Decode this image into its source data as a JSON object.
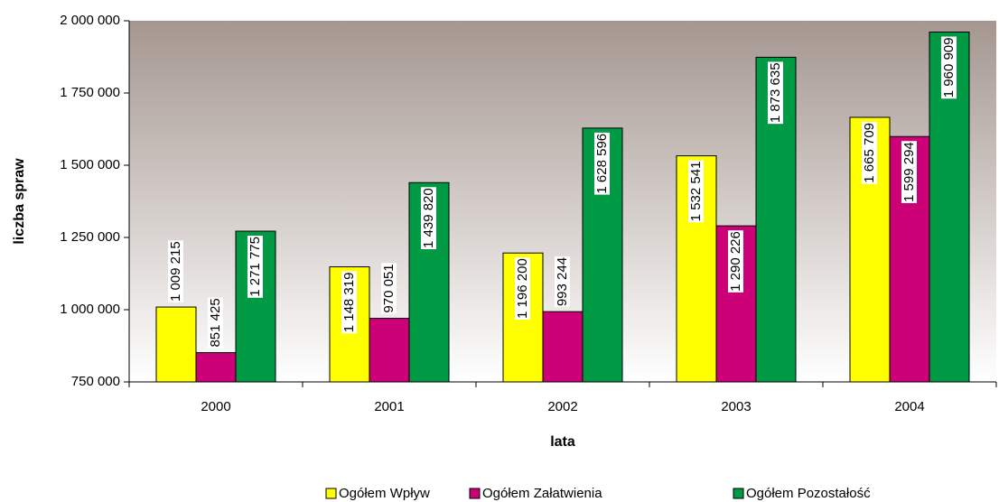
{
  "chart_data": {
    "type": "bar",
    "categories": [
      "2000",
      "2001",
      "2002",
      "2003",
      "2004"
    ],
    "x_label": "lata",
    "y_label": "liczba spraw",
    "ylim": [
      750000,
      2000000
    ],
    "yticks": [
      {
        "value": 750000,
        "label": "750 000"
      },
      {
        "value": 1000000,
        "label": "1 000 000"
      },
      {
        "value": 1250000,
        "label": "1 250 000"
      },
      {
        "value": 1500000,
        "label": "1 500 000"
      },
      {
        "value": 1750000,
        "label": "1 750 000"
      },
      {
        "value": 2000000,
        "label": "2 000 000"
      }
    ],
    "grid": false,
    "legend": "bottom",
    "series": [
      {
        "name": "Ogółem Wpływ",
        "color": "#ffff00",
        "values": [
          1009215,
          1148319,
          1196200,
          1532541,
          1665709
        ],
        "value_labels": [
          "1 009 215",
          "1 148 319",
          "1 196 200",
          "1 532 541",
          "1 665 709"
        ]
      },
      {
        "name": "Ogółem Załatwienia",
        "color": "#cc0077",
        "values": [
          851425,
          970051,
          993244,
          1290226,
          1599294
        ],
        "value_labels": [
          "851 425",
          "970 051",
          "993 244",
          "1 290 226",
          "1 599 294"
        ]
      },
      {
        "name": "Ogółem Pozostałość",
        "color": "#009944",
        "values": [
          1271775,
          1439820,
          1628596,
          1873635,
          1960909
        ],
        "value_labels": [
          "1 271 775",
          "1 439 820",
          "1 628 596",
          "1 873 635",
          "1 960 909"
        ]
      }
    ]
  }
}
